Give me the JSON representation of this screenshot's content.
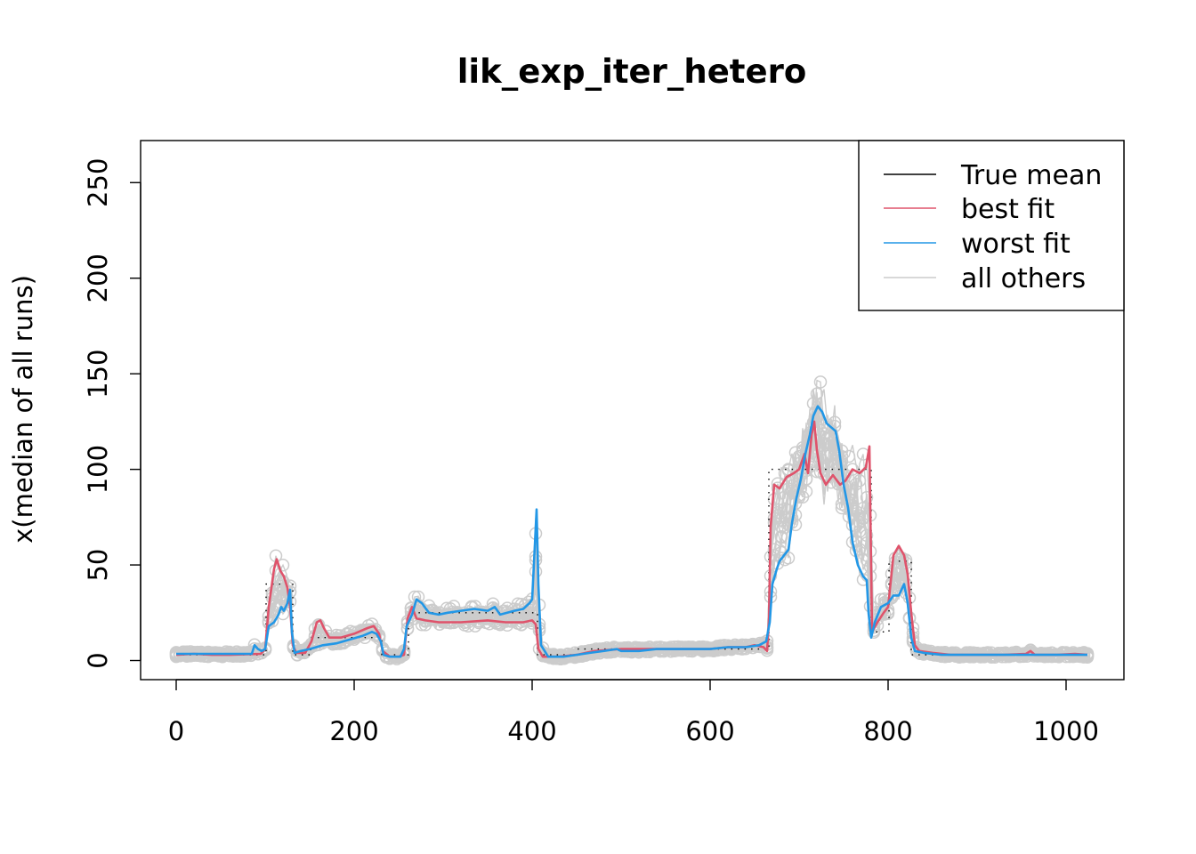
{
  "chart_data": {
    "type": "line",
    "title": "lik_exp_iter_hetero",
    "xlabel": "",
    "ylabel": "x(median of all runs)",
    "xlim": [
      -40,
      1065
    ],
    "ylim": [
      -10,
      272
    ],
    "x_ticks": [
      0,
      200,
      400,
      600,
      800,
      1000
    ],
    "y_ticks": [
      0,
      50,
      100,
      150,
      200,
      250
    ],
    "x_tick_labels": [
      "0",
      "200",
      "400",
      "600",
      "800",
      "1000"
    ],
    "y_tick_labels": [
      "0",
      "50",
      "100",
      "150",
      "200",
      "250"
    ],
    "grid": false,
    "legend_position": "top-right",
    "legend": [
      {
        "label": "True mean",
        "color": "#000000"
      },
      {
        "label": "best fit",
        "color": "#DF536B"
      },
      {
        "label": "worst fit",
        "color": "#2297E6"
      },
      {
        "label": "all others",
        "color": "#CCCCCC"
      }
    ],
    "series": [
      {
        "name": "True mean",
        "color": "#000000",
        "style": "dotted",
        "points": [
          [
            0,
            3
          ],
          [
            101,
            3
          ],
          [
            101,
            40
          ],
          [
            131,
            40
          ],
          [
            131,
            3
          ],
          [
            151,
            3
          ],
          [
            151,
            12
          ],
          [
            231,
            12
          ],
          [
            231,
            3
          ],
          [
            261,
            3
          ],
          [
            261,
            25
          ],
          [
            406,
            25
          ],
          [
            406,
            3
          ],
          [
            451,
            3
          ],
          [
            451,
            6
          ],
          [
            666,
            6
          ],
          [
            666,
            100
          ],
          [
            781,
            100
          ],
          [
            781,
            15
          ],
          [
            801,
            15
          ],
          [
            801,
            52
          ],
          [
            826,
            52
          ],
          [
            826,
            3
          ],
          [
            1024,
            3
          ]
        ]
      },
      {
        "name": "best fit",
        "color": "#DF536B",
        "points": [
          [
            0,
            3
          ],
          [
            20,
            3.5
          ],
          [
            40,
            3
          ],
          [
            60,
            3
          ],
          [
            80,
            3.3
          ],
          [
            95,
            3.5
          ],
          [
            100,
            6
          ],
          [
            104,
            28
          ],
          [
            110,
            48
          ],
          [
            113,
            53
          ],
          [
            117,
            47
          ],
          [
            121,
            44
          ],
          [
            125,
            38
          ],
          [
            128,
            28
          ],
          [
            131,
            8
          ],
          [
            135,
            4
          ],
          [
            145,
            4
          ],
          [
            152,
            10
          ],
          [
            158,
            20
          ],
          [
            162,
            21
          ],
          [
            166,
            17
          ],
          [
            172,
            12
          ],
          [
            185,
            12
          ],
          [
            200,
            14
          ],
          [
            215,
            17
          ],
          [
            222,
            18
          ],
          [
            228,
            14
          ],
          [
            232,
            5
          ],
          [
            240,
            2
          ],
          [
            250,
            2
          ],
          [
            256,
            3
          ],
          [
            260,
            22
          ],
          [
            265,
            28
          ],
          [
            270,
            22
          ],
          [
            280,
            21
          ],
          [
            295,
            20
          ],
          [
            320,
            20
          ],
          [
            350,
            21
          ],
          [
            370,
            20
          ],
          [
            390,
            20
          ],
          [
            400,
            21
          ],
          [
            404,
            19
          ],
          [
            407,
            6
          ],
          [
            412,
            2
          ],
          [
            430,
            2
          ],
          [
            450,
            3
          ],
          [
            470,
            5
          ],
          [
            500,
            6
          ],
          [
            550,
            6
          ],
          [
            600,
            6
          ],
          [
            620,
            7
          ],
          [
            640,
            7
          ],
          [
            650,
            8
          ],
          [
            660,
            7
          ],
          [
            664,
            5
          ],
          [
            666,
            20
          ],
          [
            668,
            70
          ],
          [
            672,
            92
          ],
          [
            678,
            90
          ],
          [
            686,
            96
          ],
          [
            694,
            98
          ],
          [
            700,
            100
          ],
          [
            706,
            108
          ],
          [
            710,
            98
          ],
          [
            714,
            118
          ],
          [
            717,
            125
          ],
          [
            720,
            110
          ],
          [
            724,
            98
          ],
          [
            730,
            92
          ],
          [
            738,
            97
          ],
          [
            746,
            92
          ],
          [
            752,
            94
          ],
          [
            760,
            100
          ],
          [
            768,
            98
          ],
          [
            775,
            101
          ],
          [
            779,
            112
          ],
          [
            782,
            15
          ],
          [
            788,
            20
          ],
          [
            795,
            25
          ],
          [
            800,
            28
          ],
          [
            806,
            55
          ],
          [
            812,
            60
          ],
          [
            818,
            55
          ],
          [
            822,
            45
          ],
          [
            826,
            25
          ],
          [
            830,
            8
          ],
          [
            835,
            5
          ],
          [
            850,
            4
          ],
          [
            870,
            3
          ],
          [
            900,
            3
          ],
          [
            930,
            3
          ],
          [
            955,
            3.5
          ],
          [
            960,
            5
          ],
          [
            965,
            3
          ],
          [
            990,
            3
          ],
          [
            1010,
            3.5
          ],
          [
            1024,
            3
          ]
        ]
      },
      {
        "name": "worst fit",
        "color": "#2297E6",
        "points": [
          [
            0,
            3.5
          ],
          [
            25,
            3.5
          ],
          [
            50,
            3.5
          ],
          [
            75,
            3.5
          ],
          [
            85,
            3.5
          ],
          [
            88,
            8
          ],
          [
            92,
            6
          ],
          [
            96,
            5
          ],
          [
            100,
            6
          ],
          [
            104,
            18
          ],
          [
            110,
            20
          ],
          [
            115,
            24
          ],
          [
            118,
            28
          ],
          [
            121,
            26
          ],
          [
            125,
            30
          ],
          [
            128,
            37
          ],
          [
            130,
            15
          ],
          [
            133,
            4
          ],
          [
            140,
            5
          ],
          [
            150,
            6
          ],
          [
            165,
            8
          ],
          [
            180,
            9
          ],
          [
            195,
            11
          ],
          [
            210,
            13
          ],
          [
            220,
            15
          ],
          [
            225,
            14
          ],
          [
            230,
            10
          ],
          [
            233,
            3
          ],
          [
            240,
            2
          ],
          [
            252,
            2
          ],
          [
            256,
            6
          ],
          [
            259,
            18
          ],
          [
            265,
            24
          ],
          [
            270,
            32
          ],
          [
            276,
            30
          ],
          [
            284,
            25
          ],
          [
            295,
            24
          ],
          [
            305,
            25
          ],
          [
            320,
            26
          ],
          [
            335,
            27
          ],
          [
            350,
            26
          ],
          [
            358,
            28
          ],
          [
            364,
            24
          ],
          [
            372,
            25
          ],
          [
            380,
            26
          ],
          [
            390,
            27
          ],
          [
            397,
            30
          ],
          [
            400,
            32
          ],
          [
            403,
            60
          ],
          [
            405,
            79
          ],
          [
            407,
            40
          ],
          [
            410,
            8
          ],
          [
            418,
            2
          ],
          [
            435,
            2
          ],
          [
            450,
            3
          ],
          [
            465,
            4
          ],
          [
            480,
            5
          ],
          [
            495,
            6
          ],
          [
            500,
            5
          ],
          [
            520,
            5
          ],
          [
            540,
            6
          ],
          [
            560,
            6
          ],
          [
            580,
            6
          ],
          [
            600,
            6
          ],
          [
            620,
            7
          ],
          [
            640,
            7
          ],
          [
            655,
            8
          ],
          [
            663,
            10
          ],
          [
            667,
            20
          ],
          [
            670,
            40
          ],
          [
            675,
            48
          ],
          [
            678,
            52
          ],
          [
            683,
            55
          ],
          [
            688,
            58
          ],
          [
            692,
            72
          ],
          [
            697,
            85
          ],
          [
            702,
            95
          ],
          [
            707,
            108
          ],
          [
            712,
            118
          ],
          [
            716,
            128
          ],
          [
            721,
            133
          ],
          [
            726,
            130
          ],
          [
            731,
            124
          ],
          [
            736,
            122
          ],
          [
            741,
            120
          ],
          [
            745,
            110
          ],
          [
            750,
            92
          ],
          [
            755,
            80
          ],
          [
            760,
            62
          ],
          [
            766,
            50
          ],
          [
            772,
            44
          ],
          [
            776,
            42
          ],
          [
            778,
            25
          ],
          [
            781,
            12
          ],
          [
            785,
            20
          ],
          [
            792,
            28
          ],
          [
            800,
            30
          ],
          [
            806,
            34
          ],
          [
            812,
            34
          ],
          [
            818,
            40
          ],
          [
            822,
            30
          ],
          [
            826,
            12
          ],
          [
            830,
            5
          ],
          [
            840,
            4
          ],
          [
            860,
            3
          ],
          [
            880,
            3
          ],
          [
            900,
            3
          ],
          [
            930,
            3
          ],
          [
            960,
            3
          ],
          [
            990,
            3
          ],
          [
            1024,
            3
          ]
        ]
      }
    ],
    "annotation": "grey 'all others' runs drawn as thin lines with circle markers"
  }
}
